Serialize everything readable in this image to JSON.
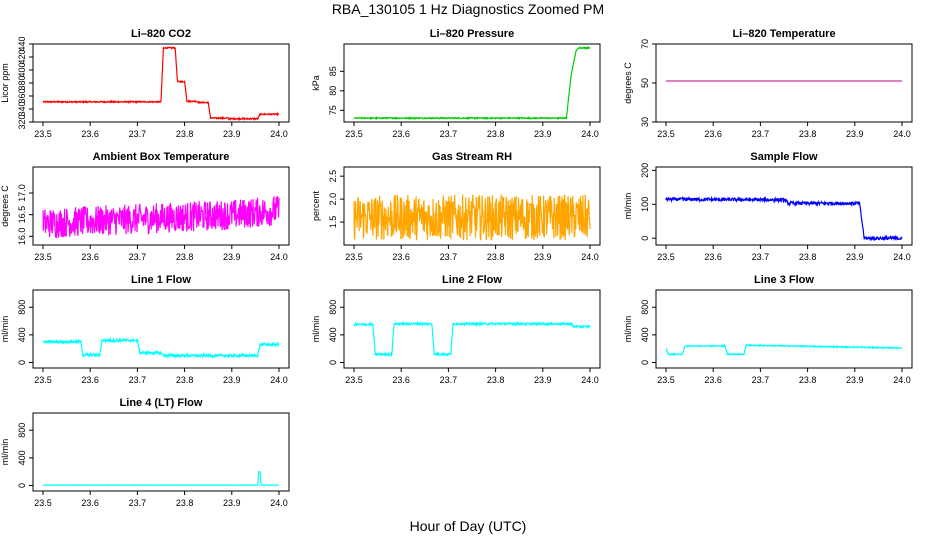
{
  "title": "RBA_130105  1 Hz Diagnostics Zoomed PM",
  "xlabel": "Hour of Day (UTC)",
  "chart_data": [
    {
      "type": "line",
      "title": "Li–820 CO2",
      "ylabel": "Licor ppm",
      "color": "#ff0000",
      "xlim": [
        23.5,
        24.0
      ],
      "ylim": [
        320,
        440
      ],
      "yticks": [
        "320",
        "340",
        "360",
        "380",
        "400",
        "420",
        "440"
      ],
      "noise": 1.0,
      "series": [
        {
          "x": [
            23.5,
            23.75,
            23.755,
            23.78,
            23.785,
            23.8,
            23.805,
            23.825,
            23.83,
            23.85,
            23.855,
            23.89,
            23.895,
            23.955,
            23.96,
            24.0
          ],
          "y": [
            351,
            351,
            434,
            434,
            382,
            382,
            352,
            352,
            350,
            350,
            326,
            326,
            325,
            325,
            332,
            332
          ]
        }
      ]
    },
    {
      "type": "line",
      "title": "Li–820 Pressure",
      "ylabel": "kPa",
      "color": "#00cc00",
      "xlim": [
        23.5,
        24.0
      ],
      "ylim": [
        72,
        92
      ],
      "yticks": [
        "75",
        "80",
        "85"
      ],
      "noise": 0.15,
      "series": [
        {
          "x": [
            23.5,
            23.93,
            23.95,
            23.96,
            23.97,
            23.975,
            24.0
          ],
          "y": [
            73,
            73,
            73,
            84,
            90,
            91,
            91
          ]
        }
      ]
    },
    {
      "type": "line",
      "title": "Li–820 Temperature",
      "ylabel": "degrees C",
      "color": "#cc3399",
      "xlim": [
        23.5,
        24.0
      ],
      "ylim": [
        30,
        70
      ],
      "yticks": [
        "30",
        "50",
        "70"
      ],
      "noise": 0,
      "series": [
        {
          "x": [
            23.5,
            24.0
          ],
          "y": [
            51,
            51
          ]
        }
      ]
    },
    {
      "type": "line",
      "title": "Ambient Box Temperature",
      "ylabel": "degrees C",
      "color": "#ff00ff",
      "xlim": [
        23.5,
        24.0
      ],
      "ylim": [
        15.8,
        17.6
      ],
      "yticks": [
        "16.0",
        "16.5",
        "17.0"
      ],
      "noise": 0.35,
      "series": [
        {
          "x": [
            23.5,
            23.6,
            23.7,
            23.8,
            23.9,
            24.0
          ],
          "y": [
            16.3,
            16.35,
            16.4,
            16.45,
            16.5,
            16.6
          ]
        }
      ]
    },
    {
      "type": "line",
      "title": "Gas Stream RH",
      "ylabel": "percent",
      "color": "#ffa500",
      "xlim": [
        23.5,
        24.0
      ],
      "ylim": [
        1.0,
        2.7
      ],
      "yticks": [
        "1.5",
        "2.0",
        "2.5"
      ],
      "noise": 0.5,
      "series": [
        {
          "x": [
            23.5,
            24.0
          ],
          "y": [
            1.6,
            1.6
          ]
        }
      ]
    },
    {
      "type": "line",
      "title": "Sample Flow",
      "ylabel": "ml/min",
      "color": "#0000ff",
      "xlim": [
        23.5,
        24.0
      ],
      "ylim": [
        -20,
        210
      ],
      "yticks": [
        "0",
        "100",
        "200"
      ],
      "noise": 5,
      "series": [
        {
          "x": [
            23.5,
            23.75,
            23.76,
            23.91,
            23.92,
            24.0
          ],
          "y": [
            115,
            113,
            103,
            103,
            0,
            0
          ]
        }
      ]
    },
    {
      "type": "line",
      "title": "Line 1 Flow",
      "ylabel": "ml/min",
      "color": "#00ffff",
      "xlim": [
        23.5,
        24.0
      ],
      "ylim": [
        -80,
        1050
      ],
      "yticks": [
        "0",
        "400",
        "800"
      ],
      "noise": 20,
      "series": [
        {
          "x": [
            23.5,
            23.58,
            23.585,
            23.62,
            23.625,
            23.7,
            23.705,
            23.75,
            23.755,
            23.955,
            23.96,
            24.0
          ],
          "y": [
            300,
            300,
            110,
            110,
            320,
            320,
            140,
            140,
            100,
            100,
            260,
            260
          ]
        }
      ]
    },
    {
      "type": "line",
      "title": "Line 2 Flow",
      "ylabel": "ml/min",
      "color": "#00ffff",
      "xlim": [
        23.5,
        24.0
      ],
      "ylim": [
        -80,
        1050
      ],
      "yticks": [
        "0",
        "400",
        "800"
      ],
      "noise": 15,
      "series": [
        {
          "x": [
            23.5,
            23.54,
            23.545,
            23.58,
            23.585,
            23.665,
            23.67,
            23.705,
            23.71,
            23.96,
            23.965,
            24.0
          ],
          "y": [
            550,
            550,
            120,
            120,
            560,
            560,
            120,
            120,
            560,
            560,
            520,
            520
          ]
        }
      ]
    },
    {
      "type": "line",
      "title": "Line 3 Flow",
      "ylabel": "ml/min",
      "color": "#00ffff",
      "xlim": [
        23.5,
        24.0
      ],
      "ylim": [
        -80,
        1050
      ],
      "yticks": [
        "0",
        "400",
        "800"
      ],
      "noise": 8,
      "series": [
        {
          "x": [
            23.5,
            23.505,
            23.535,
            23.54,
            23.625,
            23.63,
            23.665,
            23.67,
            24.0
          ],
          "y": [
            200,
            120,
            120,
            240,
            240,
            120,
            120,
            250,
            210
          ]
        }
      ]
    },
    {
      "type": "line",
      "title": "Line 4 (LT) Flow",
      "ylabel": "ml/min",
      "color": "#00ffff",
      "xlim": [
        23.5,
        24.0
      ],
      "ylim": [
        -80,
        1050
      ],
      "yticks": [
        "0",
        "400",
        "800"
      ],
      "noise": 3,
      "series": [
        {
          "x": [
            23.5,
            23.955,
            23.957,
            23.96,
            23.962,
            24.0
          ],
          "y": [
            5,
            5,
            200,
            200,
            5,
            5
          ]
        }
      ]
    }
  ],
  "xticks": [
    "23.5",
    "23.6",
    "23.7",
    "23.8",
    "23.9",
    "24.0"
  ]
}
